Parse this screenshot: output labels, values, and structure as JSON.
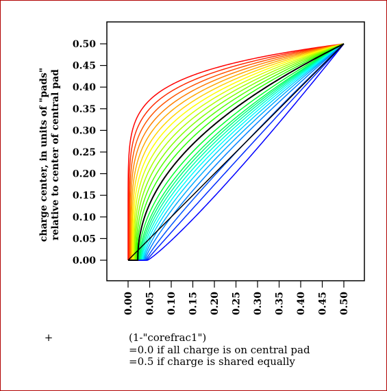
{
  "chart_data": {
    "type": "line",
    "title": "",
    "ylabel_lines": [
      "charge center, in units of \"pads\"",
      "relative to center of central pad"
    ],
    "xlabel_lines": [
      "(1-\"corefrac1\")",
      "=0.0 if all charge is on central pad",
      "=0.5 if charge is shared equally"
    ],
    "footnote_marker": "+",
    "xlim": [
      0,
      0.5
    ],
    "ylim": [
      0,
      0.5
    ],
    "x_ticks": [
      "0.00",
      "0.05",
      "0.10",
      "0.15",
      "0.20",
      "0.25",
      "0.30",
      "0.35",
      "0.40",
      "0.45",
      "0.50"
    ],
    "y_ticks": [
      "0.00",
      "0.05",
      "0.10",
      "0.15",
      "0.20",
      "0.25",
      "0.30",
      "0.35",
      "0.40",
      "0.45",
      "0.50"
    ],
    "grid": false,
    "legend": "none",
    "family": {
      "curve_count": 25,
      "color_start": "#ff0000",
      "color_end": "#0000ff",
      "x_start_at_first": 0.0,
      "x_start_at_last": 0.045,
      "y_at_x_0_05": [
        0.37,
        0.35,
        0.33,
        0.31,
        0.29,
        0.27,
        0.25,
        0.23,
        0.21,
        0.19,
        0.17,
        0.15,
        0.13,
        0.11,
        0.095,
        0.085,
        0.075,
        0.065,
        0.055,
        0.045,
        0.035,
        0.025,
        0.015,
        0.008,
        0.003
      ],
      "end_point": [
        0.5,
        0.5
      ]
    },
    "series": [
      {
        "color": "#000000",
        "highlighted_member": 12
      },
      {
        "color": "#000000",
        "reference_line": [
          [
            0.0,
            0.0
          ],
          [
            0.5,
            0.5
          ]
        ]
      }
    ]
  }
}
